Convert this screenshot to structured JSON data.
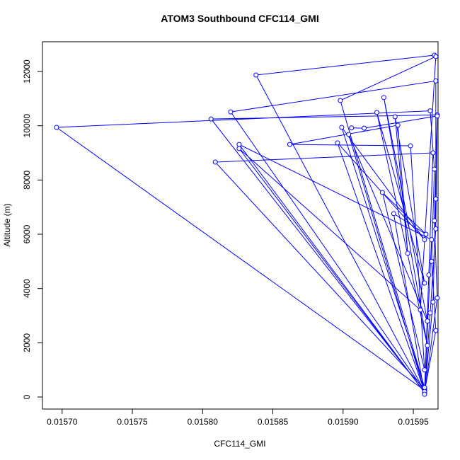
{
  "chart_data": {
    "type": "line",
    "title": "ATOM3 Southbound CFC114_GMI",
    "x_label": "CFC114_GMI",
    "y_label": "Altitude (m)",
    "x": [
      0.015965,
      0.015838,
      0.015958,
      0.015966,
      0.015963,
      0.015965,
      0.015962,
      0.015696,
      0.015958,
      0.015962,
      0.015966,
      0.015967,
      0.015806,
      0.015958,
      0.015964,
      0.015966,
      0.015966,
      0.01582,
      0.015958,
      0.015961,
      0.015964,
      0.015809,
      0.015958,
      0.015963,
      0.015826,
      0.015958,
      0.015826,
      0.015955,
      0.015966,
      0.015898,
      0.015958,
      0.015899,
      0.015958,
      0.015896,
      0.015958,
      0.015904,
      0.01596,
      0.015929,
      0.01596,
      0.015924,
      0.015958,
      0.015937,
      0.015946,
      0.015939,
      0.015862,
      0.015948,
      0.015958,
      0.015928,
      0.015959,
      0.015936,
      0.015958,
      0.015967,
      0.015965,
      0.015967,
      0.015915,
      0.015906
    ],
    "series": [
      {
        "name": "CFC114_GMI",
        "color": "#0000ff",
        "values": [
          12600,
          11870,
          200,
          2450,
          5000,
          8400,
          10550,
          9940,
          250,
          3100,
          6200,
          10400,
          10250,
          180,
          3500,
          7300,
          11650,
          10510,
          220,
          4500,
          9000,
          8660,
          300,
          5800,
          9310,
          160,
          9160,
          3210,
          12550,
          10930,
          350,
          9940,
          5800,
          9370,
          200,
          9680,
          2800,
          11040,
          1900,
          10490,
          4200,
          10330,
          5300,
          10020,
          9310,
          9260,
          1000,
          7540,
          6000,
          6760,
          100,
          3650,
          6500,
          10360,
          9910,
          9920
        ]
      }
    ],
    "xlim": [
      0.015686,
      0.0159676
    ],
    "ylim": [
      -443,
      13096
    ],
    "xticks": [
      {
        "value": 0.0157,
        "label": "0.01570"
      },
      {
        "value": 0.01575,
        "label": "0.01575"
      },
      {
        "value": 0.0158,
        "label": "0.01580"
      },
      {
        "value": 0.01585,
        "label": "0.01585"
      },
      {
        "value": 0.0159,
        "label": "0.01590"
      },
      {
        "value": 0.01595,
        "label": "0.01595"
      }
    ],
    "yticks": [
      0,
      2000,
      4000,
      6000,
      8000,
      10000,
      12000
    ]
  }
}
